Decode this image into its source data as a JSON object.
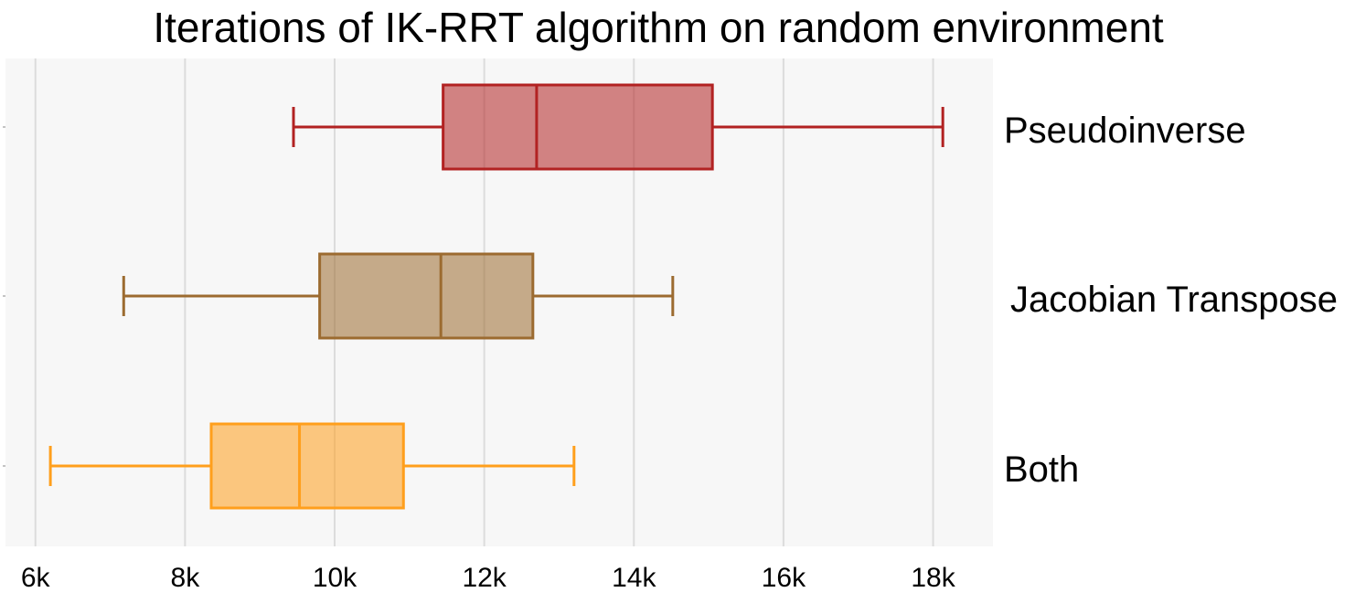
{
  "chart_data": {
    "type": "boxplot",
    "orientation": "horizontal",
    "title": "Iterations of IK-RRT algorithm on random environment",
    "xlabel": "",
    "ylabel": "",
    "xlim": [
      5600,
      18800
    ],
    "xticks": [
      {
        "value": 6000,
        "label": "6k"
      },
      {
        "value": 8000,
        "label": "8k"
      },
      {
        "value": 10000,
        "label": "10k"
      },
      {
        "value": 12000,
        "label": "12k"
      },
      {
        "value": 14000,
        "label": "14k"
      },
      {
        "value": 16000,
        "label": "16k"
      },
      {
        "value": 18000,
        "label": "18k"
      }
    ],
    "grid": "vertical",
    "categories": [
      "Pseudoinverse",
      "Jacobian Transpose",
      "Both"
    ],
    "series": [
      {
        "name": "Pseudoinverse",
        "color": "#b22222",
        "min": 9450,
        "q1": 11450,
        "median": 12700,
        "q3": 15050,
        "max": 18130
      },
      {
        "name": "Jacobian Transpose",
        "color": "#9c6b30",
        "min": 7180,
        "q1": 9800,
        "median": 11420,
        "q3": 12650,
        "max": 14520
      },
      {
        "name": "Both",
        "color": "#ff9f1c",
        "min": 6200,
        "q1": 8350,
        "median": 9530,
        "q3": 10920,
        "max": 13200
      }
    ]
  }
}
